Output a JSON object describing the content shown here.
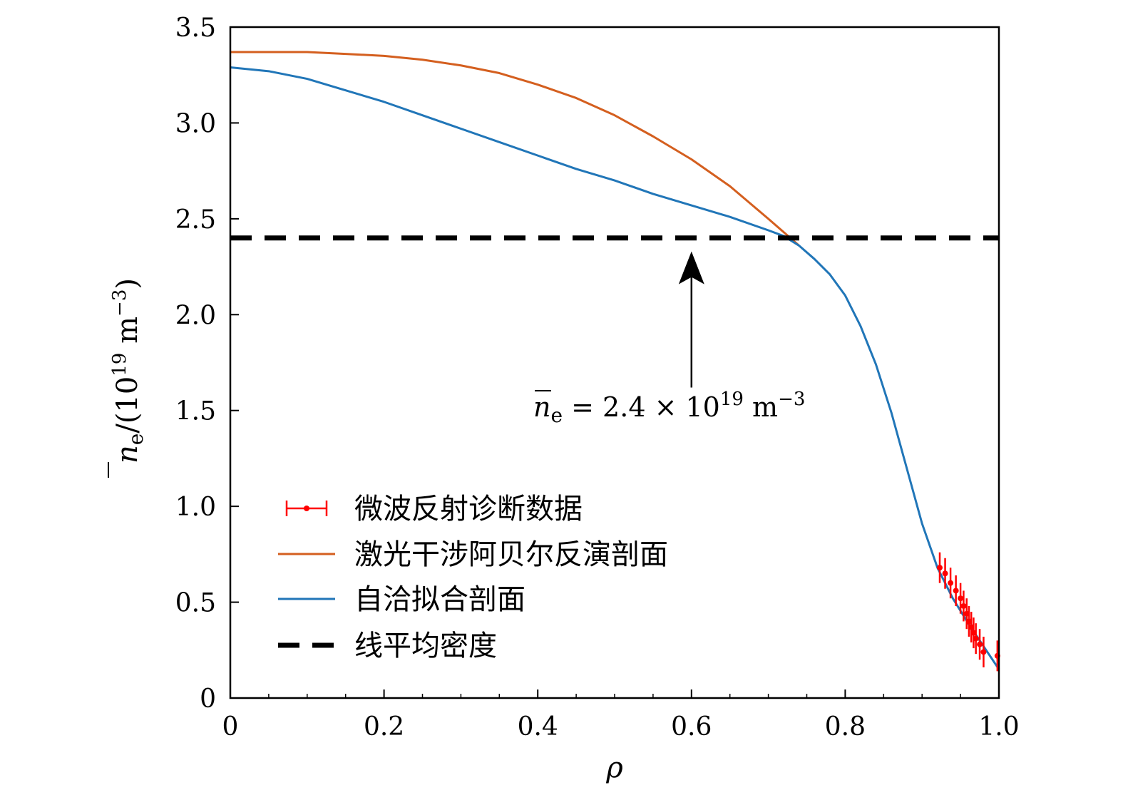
{
  "chart_data": {
    "type": "line",
    "xlabel": "ρ",
    "ylabel": {
      "main": "n",
      "sub": "e",
      "unit_prefix": "/(10",
      "exp": "19",
      "unit": " m",
      "unit_exp": "−3",
      "close": ")"
    },
    "xlim": [
      0,
      1.0
    ],
    "ylim": [
      0,
      3.5
    ],
    "x_ticks": [
      {
        "value": 0,
        "label": "0"
      },
      {
        "value": 0.2,
        "label": "0.2"
      },
      {
        "value": 0.4,
        "label": "0.4"
      },
      {
        "value": 0.6,
        "label": "0.6"
      },
      {
        "value": 0.8,
        "label": "0.8"
      },
      {
        "value": 1.0,
        "label": "1.0"
      }
    ],
    "y_ticks": [
      {
        "value": 0,
        "label": "0"
      },
      {
        "value": 0.5,
        "label": "0.5"
      },
      {
        "value": 1.0,
        "label": "1.0"
      },
      {
        "value": 1.5,
        "label": "1.5"
      },
      {
        "value": 2.0,
        "label": "2.0"
      },
      {
        "value": 2.5,
        "label": "2.5"
      },
      {
        "value": 3.0,
        "label": "3.0"
      },
      {
        "value": 3.5,
        "label": "3.5"
      }
    ],
    "minor_x_step": 0.05,
    "grid": false,
    "legend_position": "bottom-left",
    "series": [
      {
        "name": "激光干涉阿贝尔反演剖面",
        "kind": "line",
        "color": "#d45f1f",
        "x": [
          0,
          0.05,
          0.1,
          0.15,
          0.2,
          0.25,
          0.3,
          0.35,
          0.4,
          0.45,
          0.5,
          0.55,
          0.6,
          0.65,
          0.7,
          0.72,
          0.74
        ],
        "y": [
          3.37,
          3.37,
          3.37,
          3.36,
          3.35,
          3.33,
          3.3,
          3.26,
          3.2,
          3.13,
          3.04,
          2.93,
          2.81,
          2.67,
          2.5,
          2.43,
          2.36
        ]
      },
      {
        "name": "自洽拟合剖面",
        "kind": "line",
        "color": "#2176b8",
        "x": [
          0,
          0.05,
          0.1,
          0.15,
          0.2,
          0.25,
          0.3,
          0.35,
          0.4,
          0.45,
          0.5,
          0.55,
          0.6,
          0.65,
          0.7,
          0.72,
          0.74,
          0.76,
          0.78,
          0.8,
          0.82,
          0.84,
          0.86,
          0.88,
          0.9,
          0.92,
          0.94,
          0.96,
          0.98,
          1.0
        ],
        "y": [
          3.29,
          3.27,
          3.23,
          3.17,
          3.11,
          3.04,
          2.97,
          2.9,
          2.83,
          2.76,
          2.7,
          2.63,
          2.57,
          2.51,
          2.44,
          2.41,
          2.36,
          2.29,
          2.21,
          2.1,
          1.94,
          1.74,
          1.49,
          1.2,
          0.91,
          0.68,
          0.52,
          0.39,
          0.27,
          0.15
        ]
      },
      {
        "name": "微波反射诊断数据",
        "kind": "errorbar",
        "color": "#ff0000",
        "x": [
          0.923,
          0.93,
          0.937,
          0.944,
          0.95,
          0.954,
          0.958,
          0.961,
          0.964,
          0.967,
          0.97,
          0.975,
          0.98,
          0.998
        ],
        "y": [
          0.68,
          0.65,
          0.6,
          0.56,
          0.52,
          0.48,
          0.44,
          0.4,
          0.37,
          0.34,
          0.31,
          0.28,
          0.24,
          0.22
        ],
        "yerr": [
          0.08,
          0.08,
          0.08,
          0.08,
          0.08,
          0.08,
          0.08,
          0.08,
          0.08,
          0.08,
          0.08,
          0.08,
          0.08,
          0.08
        ]
      },
      {
        "name": "线平均密度",
        "kind": "hline",
        "color": "#000000",
        "y": 2.4
      }
    ],
    "annotation": {
      "text_n": "n",
      "text_sub": "e",
      "text_eq": " = 2.4 × 10",
      "text_exp": "19",
      "text_unit": " m",
      "text_unit_exp": "−3",
      "arrow_x": 0.6,
      "arrow_from_y": 1.62,
      "arrow_to_y": 2.33
    }
  }
}
